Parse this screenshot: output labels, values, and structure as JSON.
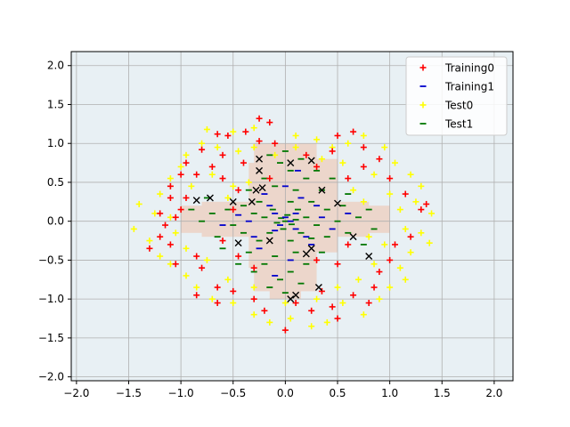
{
  "chart_data": {
    "type": "scatter",
    "title": "",
    "xlabel": "",
    "ylabel": "",
    "xlim": [
      -2.05,
      2.18
    ],
    "ylim": [
      -2.05,
      2.18
    ],
    "xticks": [
      -2.0,
      -1.5,
      -1.0,
      -0.5,
      0.0,
      0.5,
      1.0,
      1.5,
      2.0
    ],
    "xtick_labels": [
      "−2.0",
      "−1.5",
      "−1.0",
      "−0.5",
      "0.0",
      "0.5",
      "1.0",
      "1.5",
      "2.0"
    ],
    "yticks": [
      -2.0,
      -1.5,
      -1.0,
      -0.5,
      0.0,
      0.5,
      1.0,
      1.5,
      2.0
    ],
    "ytick_labels": [
      "−2.0",
      "−1.5",
      "−1.0",
      "−0.5",
      "0.0",
      "0.5",
      "1.0",
      "1.5",
      "2.0"
    ],
    "grid": true,
    "legend_position": "top-right",
    "colors": {
      "background": "#e8f0f4",
      "region": "#ecd6cb",
      "grid": "#b0b0b0",
      "training0": "#ff0000",
      "training1": "#0000cc",
      "test0": "#ffff00",
      "test1": "#007700",
      "support": "#000000"
    },
    "decision_region": [
      {
        "x": [
          -1.0,
          1.0
        ],
        "y": [
          -0.15,
          0.2
        ]
      },
      {
        "x": [
          -0.8,
          0.8
        ],
        "y": [
          -0.2,
          0.25
        ]
      },
      {
        "x": [
          -0.3,
          0.3
        ],
        "y": [
          -0.9,
          1.0
        ]
      },
      {
        "x": [
          -0.15,
          0.15
        ],
        "y": [
          -1.0,
          1.0
        ]
      },
      {
        "x": [
          0.1,
          0.5
        ],
        "y": [
          -0.4,
          0.8
        ]
      },
      {
        "x": [
          -0.35,
          0.0
        ],
        "y": [
          -0.6,
          0.75
        ]
      }
    ],
    "series": [
      {
        "name": "Training0",
        "marker": "+",
        "points": [
          [
            -0.25,
            1.32
          ],
          [
            -0.15,
            1.27
          ],
          [
            -0.38,
            1.15
          ],
          [
            -0.25,
            1.03
          ],
          [
            -0.1,
            1.0
          ],
          [
            -0.55,
            1.1
          ],
          [
            -0.65,
            1.12
          ],
          [
            -0.8,
            0.92
          ],
          [
            -0.6,
            0.85
          ],
          [
            -0.95,
            0.75
          ],
          [
            -0.7,
            0.7
          ],
          [
            -1.0,
            0.6
          ],
          [
            -0.85,
            0.6
          ],
          [
            -1.1,
            0.45
          ],
          [
            -1.1,
            0.3
          ],
          [
            -0.95,
            0.3
          ],
          [
            -1.0,
            0.15
          ],
          [
            -1.2,
            0.1
          ],
          [
            -1.05,
            0.05
          ],
          [
            -1.15,
            -0.05
          ],
          [
            -1.2,
            -0.2
          ],
          [
            -1.3,
            -0.35
          ],
          [
            -1.1,
            -0.3
          ],
          [
            -0.85,
            -0.45
          ],
          [
            -1.05,
            -0.55
          ],
          [
            -0.8,
            -0.6
          ],
          [
            -0.65,
            -0.85
          ],
          [
            -0.85,
            -0.95
          ],
          [
            -0.65,
            -1.05
          ],
          [
            -0.5,
            -0.9
          ],
          [
            -0.3,
            -1.0
          ],
          [
            -0.2,
            -1.15
          ],
          [
            0.0,
            -1.4
          ],
          [
            0.1,
            -1.05
          ],
          [
            0.25,
            -1.15
          ],
          [
            0.35,
            -0.9
          ],
          [
            0.45,
            -1.1
          ],
          [
            0.5,
            -1.25
          ],
          [
            0.65,
            -0.95
          ],
          [
            0.8,
            -1.05
          ],
          [
            0.85,
            -0.85
          ],
          [
            0.9,
            -0.65
          ],
          [
            1.0,
            -0.5
          ],
          [
            1.05,
            -0.3
          ],
          [
            1.2,
            -0.2
          ],
          [
            1.35,
            0.22
          ],
          [
            1.15,
            0.35
          ],
          [
            1.0,
            0.55
          ],
          [
            0.9,
            0.8
          ],
          [
            0.75,
            0.7
          ],
          [
            0.6,
            0.55
          ],
          [
            0.5,
            1.1
          ],
          [
            0.65,
            1.15
          ],
          [
            0.75,
            0.95
          ],
          [
            0.45,
            0.9
          ],
          [
            0.3,
            0.7
          ],
          [
            -0.15,
            0.55
          ],
          [
            -0.6,
            0.55
          ],
          [
            -0.45,
            0.4
          ],
          [
            -0.5,
            0.15
          ],
          [
            -0.6,
            -0.25
          ],
          [
            -0.45,
            -0.45
          ],
          [
            -0.3,
            -0.6
          ],
          [
            0.3,
            -0.5
          ],
          [
            0.5,
            -0.55
          ],
          [
            0.6,
            -0.3
          ],
          [
            1.3,
            0.15
          ],
          [
            -0.4,
            0.75
          ],
          [
            0.2,
            0.85
          ]
        ]
      },
      {
        "name": "Training1",
        "marker": "_",
        "points": [
          [
            0.0,
            0.05
          ],
          [
            0.05,
            0.0
          ],
          [
            -0.05,
            -0.05
          ],
          [
            0.1,
            0.1
          ],
          [
            -0.1,
            0.1
          ],
          [
            0.1,
            -0.1
          ],
          [
            -0.1,
            -0.12
          ],
          [
            0.15,
            0.3
          ],
          [
            -0.2,
            0.35
          ],
          [
            0.25,
            -0.3
          ],
          [
            -0.25,
            -0.35
          ],
          [
            0.0,
            0.45
          ],
          [
            0.05,
            -0.5
          ],
          [
            0.35,
            0.05
          ],
          [
            -0.35,
            0.0
          ],
          [
            0.45,
            -0.1
          ],
          [
            -0.45,
            0.08
          ],
          [
            0.3,
            0.2
          ],
          [
            -0.3,
            -0.2
          ],
          [
            0.12,
            0.65
          ],
          [
            -0.1,
            -0.7
          ],
          [
            0.6,
            0.1
          ],
          [
            -0.6,
            -0.05
          ],
          [
            0.2,
            -0.2
          ],
          [
            -0.15,
            0.2
          ]
        ]
      },
      {
        "name": "Test0",
        "marker": "+",
        "points": [
          [
            -0.75,
            1.18
          ],
          [
            -0.5,
            1.15
          ],
          [
            -0.3,
            1.2
          ],
          [
            0.1,
            1.1
          ],
          [
            0.3,
            1.05
          ],
          [
            0.45,
            0.95
          ],
          [
            0.6,
            1.0
          ],
          [
            0.75,
            1.1
          ],
          [
            0.95,
            0.95
          ],
          [
            1.05,
            0.75
          ],
          [
            1.2,
            0.6
          ],
          [
            1.3,
            0.45
          ],
          [
            1.25,
            0.25
          ],
          [
            1.4,
            0.1
          ],
          [
            1.3,
            -0.15
          ],
          [
            1.38,
            -0.28
          ],
          [
            1.2,
            -0.4
          ],
          [
            1.1,
            -0.6
          ],
          [
            1.15,
            -0.75
          ],
          [
            1.0,
            -0.85
          ],
          [
            0.9,
            -1.0
          ],
          [
            0.75,
            -1.2
          ],
          [
            0.55,
            -1.05
          ],
          [
            0.4,
            -1.3
          ],
          [
            0.25,
            -1.35
          ],
          [
            0.05,
            -1.25
          ],
          [
            -0.15,
            -1.3
          ],
          [
            -0.3,
            -1.2
          ],
          [
            -0.5,
            -1.05
          ],
          [
            -0.7,
            -1.0
          ],
          [
            -0.85,
            -0.85
          ],
          [
            -0.95,
            -0.7
          ],
          [
            -1.1,
            -0.55
          ],
          [
            -1.2,
            -0.45
          ],
          [
            -1.3,
            -0.25
          ],
          [
            -1.45,
            -0.1
          ],
          [
            -1.4,
            0.22
          ],
          [
            -1.25,
            0.1
          ],
          [
            -1.2,
            0.35
          ],
          [
            -1.1,
            0.55
          ],
          [
            -1.0,
            0.7
          ],
          [
            -0.95,
            0.85
          ],
          [
            -0.8,
            1.0
          ],
          [
            -0.65,
            0.95
          ],
          [
            -0.45,
            0.9
          ],
          [
            -0.3,
            0.95
          ],
          [
            -0.1,
            0.85
          ],
          [
            0.1,
            0.95
          ],
          [
            0.35,
            0.8
          ],
          [
            0.55,
            0.75
          ],
          [
            0.85,
            0.6
          ],
          [
            1.0,
            0.35
          ],
          [
            1.1,
            0.15
          ],
          [
            1.15,
            -0.1
          ],
          [
            0.95,
            -0.3
          ],
          [
            0.85,
            -0.55
          ],
          [
            0.7,
            -0.75
          ],
          [
            0.5,
            -0.85
          ],
          [
            0.3,
            -1.0
          ],
          [
            0.0,
            -1.05
          ],
          [
            -0.3,
            -0.85
          ],
          [
            -0.55,
            -0.75
          ],
          [
            -0.75,
            -0.5
          ],
          [
            -0.95,
            -0.35
          ],
          [
            -1.05,
            -0.15
          ],
          [
            -1.1,
            0.05
          ],
          [
            -0.9,
            0.45
          ],
          [
            -0.7,
            0.6
          ],
          [
            -0.5,
            0.45
          ],
          [
            -0.35,
            0.5
          ],
          [
            -0.55,
            0.3
          ],
          [
            0.65,
            0.4
          ],
          [
            0.75,
            0.25
          ],
          [
            0.8,
            -0.2
          ]
        ]
      },
      {
        "name": "Test1",
        "marker": "_",
        "points": [
          [
            0.0,
            0.0
          ],
          [
            0.02,
            0.08
          ],
          [
            -0.04,
            0.04
          ],
          [
            0.06,
            -0.04
          ],
          [
            -0.08,
            -0.02
          ],
          [
            0.1,
            0.02
          ],
          [
            -0.02,
            -0.1
          ],
          [
            0.12,
            0.15
          ],
          [
            -0.12,
            0.15
          ],
          [
            0.15,
            -0.15
          ],
          [
            -0.15,
            -0.15
          ],
          [
            0.2,
            0.05
          ],
          [
            -0.2,
            0.05
          ],
          [
            0.05,
            0.25
          ],
          [
            0.05,
            -0.25
          ],
          [
            0.25,
            0.25
          ],
          [
            -0.25,
            0.25
          ],
          [
            0.25,
            -0.22
          ],
          [
            -0.25,
            -0.25
          ],
          [
            0.3,
            -0.05
          ],
          [
            -0.3,
            0.1
          ],
          [
            0.4,
            0.15
          ],
          [
            -0.4,
            0.2
          ],
          [
            0.4,
            -0.2
          ],
          [
            -0.4,
            -0.15
          ],
          [
            0.5,
            0.0
          ],
          [
            -0.5,
            -0.05
          ],
          [
            0.55,
            0.2
          ],
          [
            -0.55,
            0.15
          ],
          [
            0.6,
            -0.15
          ],
          [
            -0.65,
            -0.2
          ],
          [
            0.7,
            0.05
          ],
          [
            -0.7,
            0.1
          ],
          [
            0.8,
            0.15
          ],
          [
            -0.8,
            0.0
          ],
          [
            0.85,
            -0.1
          ],
          [
            -0.9,
            0.15
          ],
          [
            0.1,
            0.4
          ],
          [
            -0.1,
            0.45
          ],
          [
            0.2,
            0.55
          ],
          [
            -0.2,
            0.55
          ],
          [
            0.05,
            0.65
          ],
          [
            -0.05,
            0.75
          ],
          [
            0.15,
            0.8
          ],
          [
            -0.15,
            0.85
          ],
          [
            0.0,
            0.9
          ],
          [
            0.1,
            -0.4
          ],
          [
            -0.1,
            -0.45
          ],
          [
            0.2,
            -0.55
          ],
          [
            -0.2,
            -0.55
          ],
          [
            0.05,
            -0.65
          ],
          [
            -0.05,
            -0.75
          ],
          [
            0.15,
            -0.8
          ],
          [
            -0.15,
            -0.85
          ],
          [
            0.0,
            -0.92
          ],
          [
            0.35,
            0.4
          ],
          [
            -0.35,
            0.4
          ],
          [
            0.35,
            -0.4
          ],
          [
            -0.35,
            -0.4
          ],
          [
            0.45,
            0.55
          ],
          [
            -0.45,
            -0.55
          ],
          [
            0.6,
            0.35
          ],
          [
            -0.6,
            -0.35
          ],
          [
            0.3,
            0.65
          ],
          [
            -0.3,
            -0.65
          ],
          [
            0.75,
            -0.3
          ],
          [
            -0.75,
            0.3
          ]
        ]
      }
    ],
    "support_vectors": {
      "marker": "x",
      "points": [
        [
          -0.25,
          0.8
        ],
        [
          0.05,
          0.75
        ],
        [
          0.25,
          0.78
        ],
        [
          -0.25,
          0.65
        ],
        [
          0.35,
          0.4
        ],
        [
          0.5,
          0.23
        ],
        [
          -0.72,
          0.3
        ],
        [
          -0.85,
          0.27
        ],
        [
          -0.5,
          0.25
        ],
        [
          -0.32,
          0.25
        ],
        [
          -0.28,
          0.4
        ],
        [
          -0.22,
          0.43
        ],
        [
          -0.15,
          -0.25
        ],
        [
          -0.45,
          -0.28
        ],
        [
          0.65,
          -0.2
        ],
        [
          0.25,
          -0.35
        ],
        [
          0.2,
          -0.42
        ],
        [
          0.32,
          -0.85
        ],
        [
          0.05,
          -1.0
        ],
        [
          0.1,
          -0.95
        ],
        [
          0.8,
          -0.45
        ]
      ]
    }
  },
  "legend": {
    "items": [
      {
        "label": "Training0",
        "marker": "+",
        "color": "#ff0000"
      },
      {
        "label": "Training1",
        "marker": "_",
        "color": "#0000cc"
      },
      {
        "label": "Test0",
        "marker": "+",
        "color": "#ffff00"
      },
      {
        "label": "Test1",
        "marker": "_",
        "color": "#007700"
      }
    ]
  }
}
